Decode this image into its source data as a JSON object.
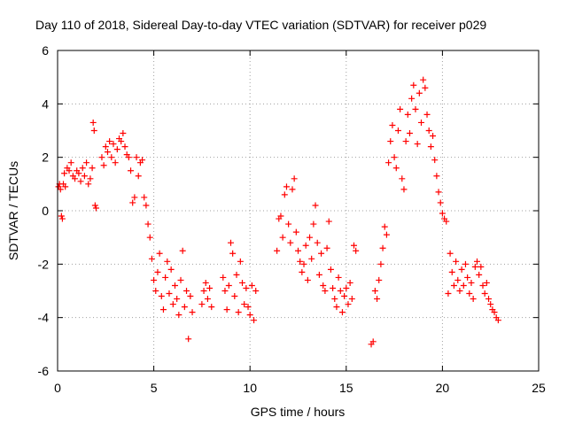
{
  "chart_data": {
    "type": "scatter",
    "title": "Day 110 of 2018, Sidereal Day-to-day VTEC variation (SDTVAR) for receiver p029",
    "xlabel": "GPS time / hours",
    "ylabel": "SDTVAR / TECUs",
    "xlim": [
      0,
      25
    ],
    "ylim": [
      -6,
      6
    ],
    "x_ticks": [
      "0",
      "5",
      "10",
      "15",
      "20",
      "25"
    ],
    "y_ticks": [
      "-6",
      "-4",
      "-2",
      "0",
      "2",
      "4",
      "6"
    ],
    "grid": true,
    "marker": "+",
    "color": "#ff0000",
    "series": [
      {
        "name": "seg1",
        "x": [
          0.05,
          0.1,
          0.15,
          0.2,
          0.25,
          0.3,
          0.35,
          0.4,
          0.5,
          0.6,
          0.7,
          0.8,
          0.9,
          1.0,
          1.1,
          1.2,
          1.3,
          1.4,
          1.5,
          1.6,
          1.7,
          1.8
        ],
        "y": [
          0.9,
          1.0,
          0.8,
          -0.2,
          -0.3,
          1.0,
          1.4,
          0.9,
          1.6,
          1.5,
          1.8,
          1.3,
          1.2,
          1.5,
          1.4,
          1.1,
          1.6,
          1.3,
          1.8,
          1.0,
          1.2,
          1.6
        ]
      },
      {
        "name": "seg2",
        "x": [
          1.85,
          1.9,
          1.95,
          2.0
        ],
        "y": [
          3.3,
          3.0,
          0.2,
          0.1
        ]
      },
      {
        "name": "seg3",
        "x": [
          2.3,
          2.4,
          2.5,
          2.6,
          2.7,
          2.8,
          2.9,
          3.0,
          3.1,
          3.2,
          3.3,
          3.4,
          3.5,
          3.6,
          3.7,
          3.8,
          3.9,
          4.0,
          4.1,
          4.2,
          4.3,
          4.4,
          4.5
        ],
        "y": [
          2.0,
          1.7,
          2.4,
          2.2,
          2.6,
          2.0,
          2.5,
          1.8,
          2.3,
          2.7,
          2.6,
          2.9,
          2.4,
          2.1,
          2.0,
          1.5,
          0.3,
          0.5,
          2.0,
          1.3,
          1.8,
          1.9,
          0.5
        ]
      },
      {
        "name": "seg4",
        "x": [
          4.6,
          4.7,
          4.8,
          4.9,
          5.0,
          5.1,
          5.2,
          5.3,
          5.4,
          5.5,
          5.6,
          5.7,
          5.8,
          5.9,
          6.0,
          6.1,
          6.2,
          6.3,
          6.4,
          6.5,
          6.6,
          6.7,
          6.8,
          6.9,
          7.0
        ],
        "y": [
          0.2,
          -0.5,
          -1.0,
          -1.8,
          -2.6,
          -3.0,
          -2.3,
          -1.6,
          -3.2,
          -3.7,
          -2.5,
          -1.9,
          -3.1,
          -2.2,
          -3.5,
          -2.8,
          -3.3,
          -3.9,
          -2.6,
          -1.5,
          -3.6,
          -3.0,
          -4.8,
          -3.2,
          -3.8
        ]
      },
      {
        "name": "seg5",
        "x": [
          7.5,
          7.6,
          7.7,
          7.8,
          7.9,
          8.0
        ],
        "y": [
          -3.5,
          -3.0,
          -2.7,
          -3.3,
          -2.9,
          -3.6
        ]
      },
      {
        "name": "seg6",
        "x": [
          8.6,
          8.7,
          8.8,
          8.9,
          9.0,
          9.1,
          9.2,
          9.3,
          9.4,
          9.5,
          9.6,
          9.7,
          9.8,
          9.9,
          10.0,
          10.1,
          10.2,
          10.3
        ],
        "y": [
          -2.5,
          -3.0,
          -3.7,
          -2.8,
          -1.2,
          -1.6,
          -3.2,
          -2.4,
          -3.8,
          -1.9,
          -2.7,
          -3.5,
          -2.9,
          -3.6,
          -3.9,
          -2.8,
          -4.1,
          -3.0
        ]
      },
      {
        "name": "seg7",
        "x": [
          11.4,
          11.5,
          11.6,
          11.7,
          11.8,
          11.9,
          12.0,
          12.1,
          12.2,
          12.3,
          12.4,
          12.5,
          12.6,
          12.7,
          12.8,
          12.9,
          13.0,
          13.1,
          13.2,
          13.3,
          13.4,
          13.5,
          13.6,
          13.7,
          13.8,
          13.9,
          14.0,
          14.1,
          14.2,
          14.3,
          14.4,
          14.5,
          14.6,
          14.7,
          14.8,
          14.9,
          15.0,
          15.1,
          15.2,
          15.3,
          15.4,
          15.5
        ],
        "y": [
          -1.5,
          -0.3,
          -0.2,
          -1.0,
          0.6,
          0.9,
          -0.5,
          -1.2,
          0.8,
          1.2,
          -0.8,
          -1.5,
          -1.9,
          -2.3,
          -2.0,
          -1.3,
          -2.6,
          -1.0,
          -1.8,
          -0.5,
          0.2,
          -1.2,
          -2.4,
          -1.6,
          -2.8,
          -3.0,
          -1.4,
          -0.4,
          -2.2,
          -2.9,
          -3.3,
          -3.6,
          -2.5,
          -3.0,
          -3.8,
          -3.2,
          -2.9,
          -3.5,
          -2.7,
          -3.3,
          -1.3,
          -1.5
        ]
      },
      {
        "name": "seg8",
        "x": [
          16.3,
          16.4,
          16.5,
          16.6,
          16.7,
          16.8,
          16.9,
          17.0,
          17.1,
          17.2,
          17.3,
          17.4,
          17.5,
          17.6,
          17.7,
          17.8,
          17.9,
          18.0,
          18.1,
          18.2,
          18.3,
          18.4,
          18.5,
          18.6,
          18.7,
          18.8,
          18.9,
          19.0,
          19.1,
          19.2,
          19.3,
          19.4,
          19.5,
          19.6,
          19.7,
          19.8,
          19.9,
          20.0,
          20.1,
          20.2
        ],
        "y": [
          -5.0,
          -4.9,
          -3.0,
          -3.3,
          -2.6,
          -2.0,
          -1.4,
          -0.6,
          -0.9,
          1.8,
          2.6,
          3.2,
          2.0,
          1.6,
          3.0,
          3.8,
          1.2,
          0.8,
          2.6,
          3.6,
          2.9,
          4.2,
          4.7,
          3.8,
          2.5,
          4.4,
          3.3,
          4.9,
          4.6,
          3.6,
          3.0,
          2.4,
          2.8,
          1.9,
          1.3,
          0.7,
          0.3,
          -0.1,
          -0.3,
          -0.4
        ]
      },
      {
        "name": "seg9",
        "x": [
          20.3,
          20.4,
          20.5,
          20.6,
          20.7,
          20.8,
          20.9,
          21.0,
          21.1,
          21.2,
          21.3,
          21.4,
          21.5,
          21.6,
          21.7,
          21.8,
          21.9,
          22.0,
          22.1,
          22.2,
          22.3,
          22.4,
          22.5,
          22.6,
          22.7,
          22.8,
          22.9
        ],
        "y": [
          -3.1,
          -1.6,
          -2.3,
          -2.8,
          -1.9,
          -2.6,
          -3.0,
          -2.2,
          -2.8,
          -2.0,
          -2.5,
          -3.1,
          -2.7,
          -3.3,
          -2.1,
          -1.9,
          -2.4,
          -2.1,
          -2.8,
          -3.1,
          -2.7,
          -3.3,
          -3.5,
          -3.7,
          -3.8,
          -4.0,
          -4.1
        ]
      }
    ]
  }
}
